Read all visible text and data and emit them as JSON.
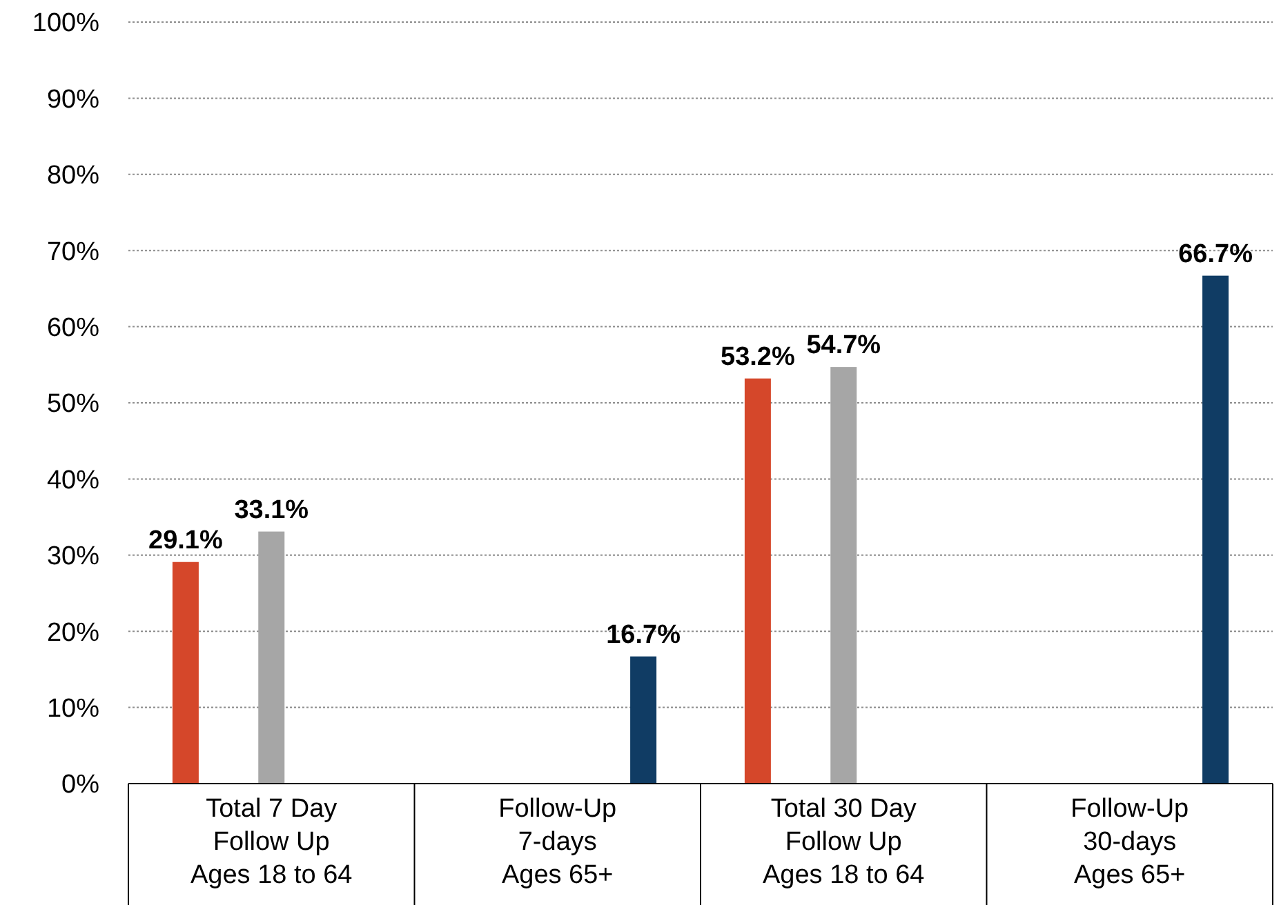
{
  "chart_data": {
    "type": "bar",
    "categories": [
      "Total 7 Day\nFollow Up\nAges 18 to 64",
      "Follow-Up\n7-days\nAges 65+",
      "Total 30 Day\nFollow Up\nAges 18 to 64",
      "Follow-Up\n30-days\nAges 65+"
    ],
    "series": [
      {
        "color": "#d5472a",
        "values": [
          29.1,
          null,
          53.2,
          null
        ]
      },
      {
        "color": "#a6a6a6",
        "values": [
          33.1,
          null,
          54.7,
          null
        ]
      },
      {
        "color": "#103c64",
        "values": [
          null,
          16.7,
          null,
          66.7
        ]
      }
    ],
    "value_labels": [
      [
        "29.1%",
        null,
        "53.2%",
        null
      ],
      [
        "33.1%",
        null,
        "54.7%",
        null
      ],
      [
        null,
        "16.7%",
        null,
        "66.7%"
      ]
    ],
    "ylim": [
      0,
      100
    ],
    "yticks": [
      {
        "value": 0,
        "label": "0%"
      },
      {
        "value": 10,
        "label": "10%"
      },
      {
        "value": 20,
        "label": "20%"
      },
      {
        "value": 30,
        "label": "30%"
      },
      {
        "value": 40,
        "label": "40%"
      },
      {
        "value": 50,
        "label": "50%"
      },
      {
        "value": 60,
        "label": "60%"
      },
      {
        "value": 70,
        "label": "70%"
      },
      {
        "value": 80,
        "label": "80%"
      },
      {
        "value": 90,
        "label": "90%"
      },
      {
        "value": 100,
        "label": "100%"
      }
    ],
    "grid": "y"
  }
}
